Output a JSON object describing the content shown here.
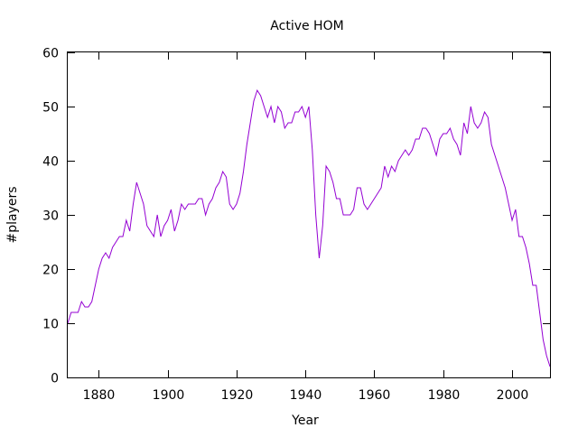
{
  "chart_data": {
    "type": "line",
    "title": "Active HOM",
    "xlabel": "Year",
    "ylabel": "#players",
    "xlim": [
      1871,
      2011
    ],
    "ylim": [
      0,
      60
    ],
    "xticks": [
      1880,
      1900,
      1920,
      1940,
      1960,
      1980,
      2000
    ],
    "yticks": [
      0,
      10,
      20,
      30,
      40,
      50,
      60
    ],
    "grid": false,
    "legend": "none",
    "colors": {
      "line": "#9400d3",
      "axes": "#000000",
      "background": "#ffffff"
    },
    "series": [
      {
        "x": [
          1871,
          1872,
          1873,
          1874,
          1875,
          1876,
          1877,
          1878,
          1879,
          1880,
          1881,
          1882,
          1883,
          1884,
          1885,
          1886,
          1887,
          1888,
          1889,
          1890,
          1891,
          1892,
          1893,
          1894,
          1895,
          1896,
          1897,
          1898,
          1899,
          1900,
          1901,
          1902,
          1903,
          1904,
          1905,
          1906,
          1907,
          1908,
          1909,
          1910,
          1911,
          1912,
          1913,
          1914,
          1915,
          1916,
          1917,
          1918,
          1919,
          1920,
          1921,
          1922,
          1923,
          1924,
          1925,
          1926,
          1927,
          1928,
          1929,
          1930,
          1931,
          1932,
          1933,
          1934,
          1935,
          1936,
          1937,
          1938,
          1939,
          1940,
          1941,
          1942,
          1943,
          1944,
          1945,
          1946,
          1947,
          1948,
          1949,
          1950,
          1951,
          1952,
          1953,
          1954,
          1955,
          1956,
          1957,
          1958,
          1959,
          1960,
          1961,
          1962,
          1963,
          1964,
          1965,
          1966,
          1967,
          1968,
          1969,
          1970,
          1971,
          1972,
          1973,
          1974,
          1975,
          1976,
          1977,
          1978,
          1979,
          1980,
          1981,
          1982,
          1983,
          1984,
          1985,
          1986,
          1987,
          1988,
          1989,
          1990,
          1991,
          1992,
          1993,
          1994,
          1995,
          1996,
          1997,
          1998,
          1999,
          2000,
          2001,
          2002,
          2003,
          2004,
          2005,
          2006,
          2007,
          2008,
          2009,
          2010,
          2011
        ],
        "y": [
          10,
          12,
          12,
          12,
          14,
          13,
          13,
          14,
          17,
          20,
          22,
          23,
          22,
          24,
          25,
          26,
          26,
          29,
          27,
          32,
          36,
          34,
          32,
          28,
          27,
          26,
          30,
          26,
          28,
          29,
          31,
          27,
          29,
          32,
          31,
          32,
          32,
          32,
          33,
          33,
          30,
          32,
          33,
          35,
          36,
          38,
          37,
          32,
          31,
          32,
          34,
          38,
          43,
          47,
          51,
          53,
          52,
          50,
          48,
          50,
          47,
          50,
          49,
          46,
          47,
          47,
          49,
          49,
          50,
          48,
          50,
          42,
          30,
          22,
          28,
          39,
          38,
          36,
          33,
          33,
          30,
          30,
          30,
          31,
          35,
          35,
          32,
          31,
          32,
          33,
          34,
          35,
          39,
          37,
          39,
          38,
          40,
          41,
          42,
          41,
          42,
          44,
          44,
          46,
          46,
          45,
          43,
          41,
          44,
          45,
          45,
          46,
          44,
          43,
          41,
          47,
          45,
          50,
          47,
          46,
          47,
          49,
          48,
          43,
          41,
          39,
          37,
          35,
          32,
          29,
          31,
          26,
          26,
          24,
          21,
          17,
          17,
          12,
          7,
          4,
          2
        ]
      }
    ]
  }
}
